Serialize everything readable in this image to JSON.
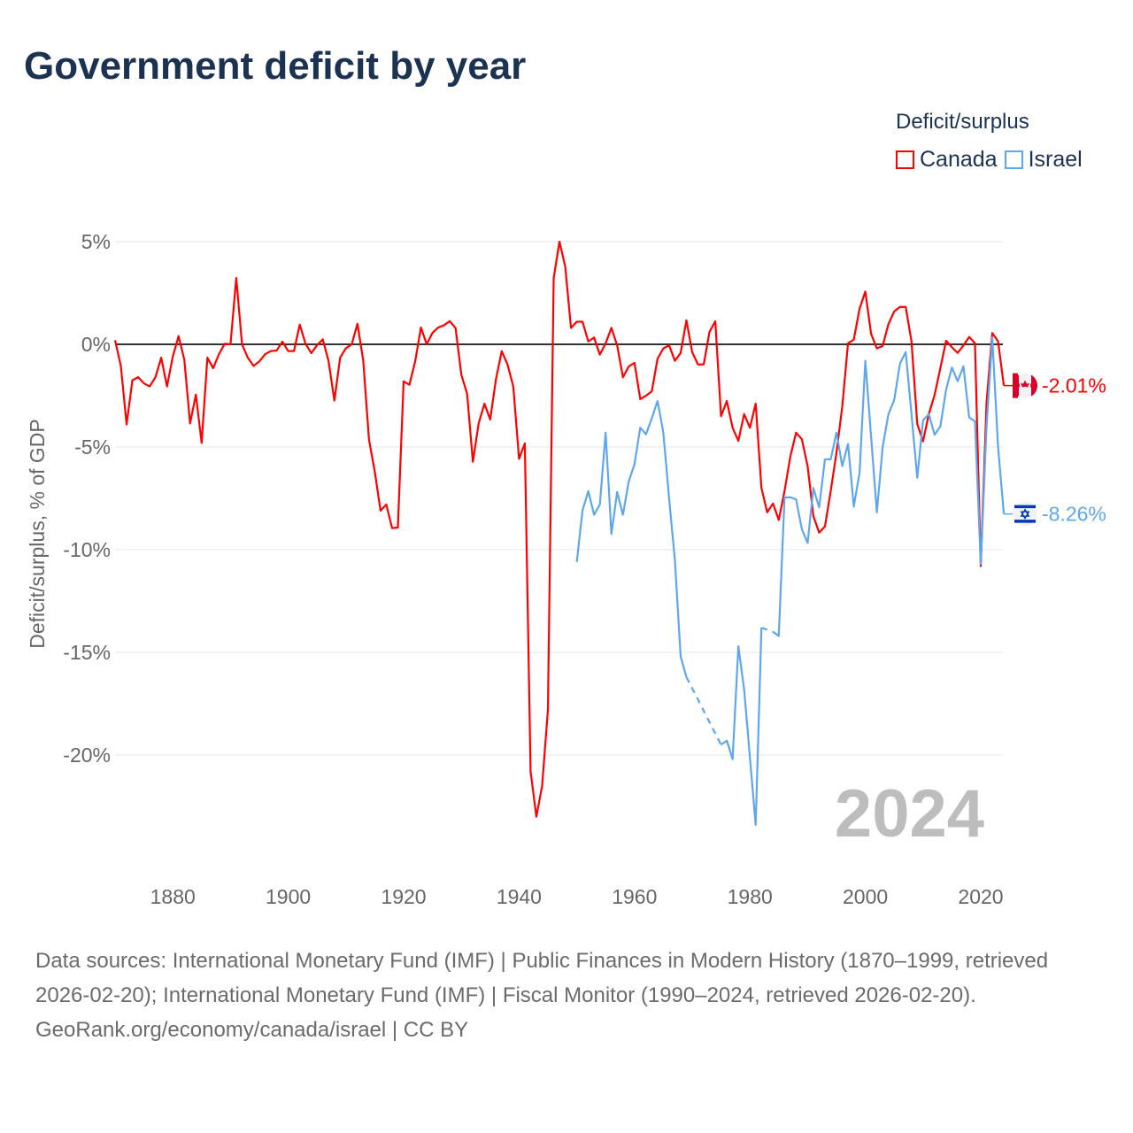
{
  "title": "Government deficit by year",
  "legend": {
    "title": "Deficit/surplus",
    "items": [
      {
        "label": "Canada",
        "color": "#ff0000"
      },
      {
        "label": "Israel",
        "color": "#5ea7ec"
      }
    ]
  },
  "current_year": "2024",
  "footer": {
    "sources": "Data sources: International Monetary Fund (IMF) | Public Finances in Modern History (1870–1999, retrieved 2026-02-20); International Monetary Fund (IMF) | Fiscal Monitor (1990–2024, retrieved 2026-02-20).",
    "credit": "GeoRank.org/economy/canada/israel | CC BY"
  },
  "chart_data": {
    "type": "line",
    "title": "Government deficit by year",
    "xlabel": "",
    "ylabel": "Deficit/surplus, % of GDP",
    "xlim": [
      1870,
      2024
    ],
    "ylim": [
      -25,
      5
    ],
    "x_ticks": [
      1880,
      1900,
      1920,
      1940,
      1960,
      1980,
      2000,
      2020
    ],
    "y_ticks": [
      5,
      0,
      -5,
      -10,
      -15,
      -20
    ],
    "y_tick_labels": [
      "5%",
      "0%",
      "-5%",
      "-10%",
      "-15%",
      "-20%"
    ],
    "grid": true,
    "legend_position": "top-right",
    "series": [
      {
        "name": "Canada",
        "color": "#ff0000",
        "end_label": "-2.01%",
        "start_year": 1870,
        "values": [
          0.2,
          -1.05,
          -3.9,
          -1.75,
          -1.6,
          -1.9,
          -2.05,
          -1.6,
          -0.65,
          -2.05,
          -0.6,
          0.4,
          -0.75,
          -3.85,
          -2.45,
          -4.8,
          -0.65,
          -1.16,
          -0.48,
          0.03,
          0,
          3.23,
          0,
          -0.65,
          -1.05,
          -0.83,
          -0.48,
          -0.33,
          -0.3,
          0.13,
          -0.33,
          -0.33,
          0.96,
          0.03,
          -0.43,
          -0.04,
          0.24,
          -0.83,
          -2.74,
          -0.65,
          -0.19,
          0,
          1.0,
          -0.79,
          -4.64,
          -6.2,
          -8.1,
          -7.8,
          -8.95,
          -8.92,
          -1.8,
          -1.97,
          -0.83,
          0.82,
          0,
          0.56,
          0.82,
          0.93,
          1.13,
          0.79,
          -1.48,
          -2.41,
          -5.72,
          -3.85,
          -2.89,
          -3.66,
          -1.7,
          -0.33,
          -0.98,
          -2.05,
          -5.58,
          -4.82,
          -20.8,
          -23.0,
          -21.5,
          -17.8,
          3.22,
          5.0,
          3.79,
          0.8,
          1.1,
          1.1,
          0.14,
          0.33,
          -0.5,
          0.05,
          0.8,
          -0.05,
          -1.6,
          -1.08,
          -0.9,
          -2.67,
          -2.5,
          -2.29,
          -0.7,
          -0.2,
          -0.05,
          -0.8,
          -0.42,
          1.17,
          -0.38,
          -0.98,
          -0.98,
          0.61,
          1.12,
          -3.5,
          -2.76,
          -4.06,
          -4.7,
          -3.4,
          -4.06,
          -2.89,
          -7.0,
          -8.18,
          -7.75,
          -8.55,
          -7.15,
          -5.47,
          -4.3,
          -4.62,
          -5.93,
          -8.36,
          -9.17,
          -8.87,
          -7.15,
          -5.28,
          -3.04,
          0.05,
          0.23,
          1.73,
          2.57,
          0.51,
          -0.2,
          -0.08,
          0.98,
          1.6,
          1.82,
          1.82,
          0.14,
          -3.88,
          -4.72,
          -3.4,
          -2.47,
          -1.16,
          0.18,
          -0.14,
          -0.42,
          -0.05,
          0.36,
          0.05,
          -10.8,
          -2.85,
          0.55,
          0.14,
          -2.01
        ]
      },
      {
        "name": "Israel",
        "color": "#5ea7ec",
        "end_label": "-8.26%",
        "start_year": 1950,
        "values": [
          -10.6,
          -8.08,
          -7.15,
          -8.3,
          -7.8,
          -4.3,
          -9.24,
          -7.19,
          -8.3,
          -6.68,
          -5.84,
          -4.06,
          -4.38,
          -3.6,
          -2.76,
          -4.3,
          -7.5,
          -10.5,
          -15.2,
          -16.2,
          null,
          null,
          null,
          null,
          null,
          -19.5,
          -19.3,
          -20.2,
          -14.7,
          -16.8,
          -20.1,
          -23.4,
          -13.8,
          null,
          -14.0,
          -14.2,
          -7.45,
          -7.45,
          -7.55,
          -9.0,
          -9.67,
          -7.0,
          -7.94,
          -5.6,
          -5.6,
          -4.3,
          -5.93,
          -4.85,
          -7.9,
          -6.25,
          -0.8,
          -4.5,
          -8.18,
          -5.0,
          -3.4,
          -2.72,
          -0.94,
          -0.38,
          -3.4,
          -6.5,
          -3.7,
          -3.4,
          -4.4,
          -4.0,
          -2.2,
          -1.13,
          -1.8,
          -1.07,
          -3.56,
          -3.75,
          -10.7,
          -4.0,
          0.33,
          -5.0,
          -8.26
        ]
      }
    ]
  }
}
